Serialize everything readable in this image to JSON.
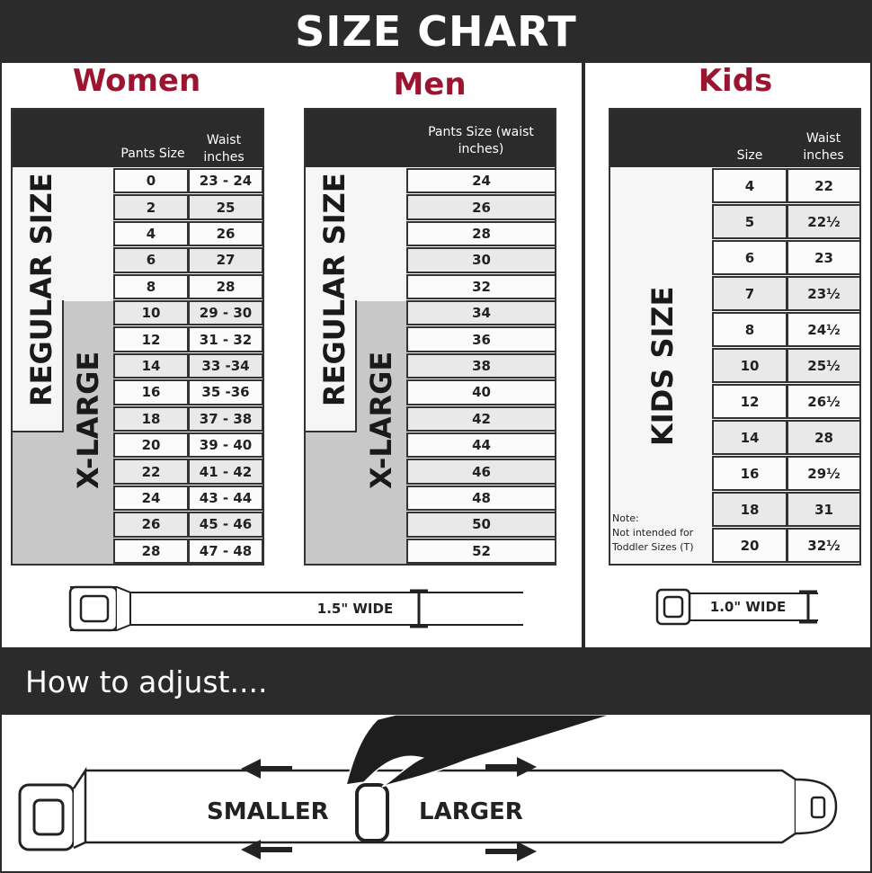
{
  "title": "SIZE CHART",
  "colors": {
    "header_bg": "#2b2b2b",
    "section_title": "#9b1530",
    "xlarge_fill": "#c8c8c8"
  },
  "women": {
    "title": "Women",
    "col1": "Pants Size",
    "col2": "Waist inches",
    "regular_label": "REGULAR SIZE",
    "xlarge_label": "X-LARGE",
    "rows": [
      [
        "0",
        "23 - 24"
      ],
      [
        "2",
        "25"
      ],
      [
        "4",
        "26"
      ],
      [
        "6",
        "27"
      ],
      [
        "8",
        "28"
      ],
      [
        "10",
        "29 - 30"
      ],
      [
        "12",
        "31 - 32"
      ],
      [
        "14",
        "33 -34"
      ],
      [
        "16",
        "35 -36"
      ],
      [
        "18",
        "37 - 38"
      ],
      [
        "20",
        "39 - 40"
      ],
      [
        "22",
        "41 - 42"
      ],
      [
        "24",
        "43 - 44"
      ],
      [
        "26",
        "45 - 46"
      ],
      [
        "28",
        "47 - 48"
      ]
    ],
    "belt_width": "1.5\" WIDE"
  },
  "men": {
    "title": "Men",
    "col1": "Pants Size (waist inches)",
    "regular_label": "REGULAR SIZE",
    "xlarge_label": "X-LARGE",
    "rows": [
      "24",
      "26",
      "28",
      "30",
      "32",
      "34",
      "36",
      "38",
      "40",
      "42",
      "44",
      "46",
      "48",
      "50",
      "52"
    ]
  },
  "kids": {
    "title": "Kids",
    "col1": "Size",
    "col2": "Waist inches",
    "label": "KIDS SIZE",
    "note_title": "Note:",
    "note_text": "Not intended for Toddler Sizes (T)",
    "rows": [
      [
        "4",
        "22"
      ],
      [
        "5",
        "22½"
      ],
      [
        "6",
        "23"
      ],
      [
        "7",
        "23½"
      ],
      [
        "8",
        "24½"
      ],
      [
        "10",
        "25½"
      ],
      [
        "12",
        "26½"
      ],
      [
        "14",
        "28"
      ],
      [
        "16",
        "29½"
      ],
      [
        "18",
        "31"
      ],
      [
        "20",
        "32½"
      ]
    ],
    "belt_width": "1.0\" WIDE"
  },
  "adjust": {
    "title": "How to adjust....",
    "smaller": "SMALLER",
    "larger": "LARGER"
  }
}
